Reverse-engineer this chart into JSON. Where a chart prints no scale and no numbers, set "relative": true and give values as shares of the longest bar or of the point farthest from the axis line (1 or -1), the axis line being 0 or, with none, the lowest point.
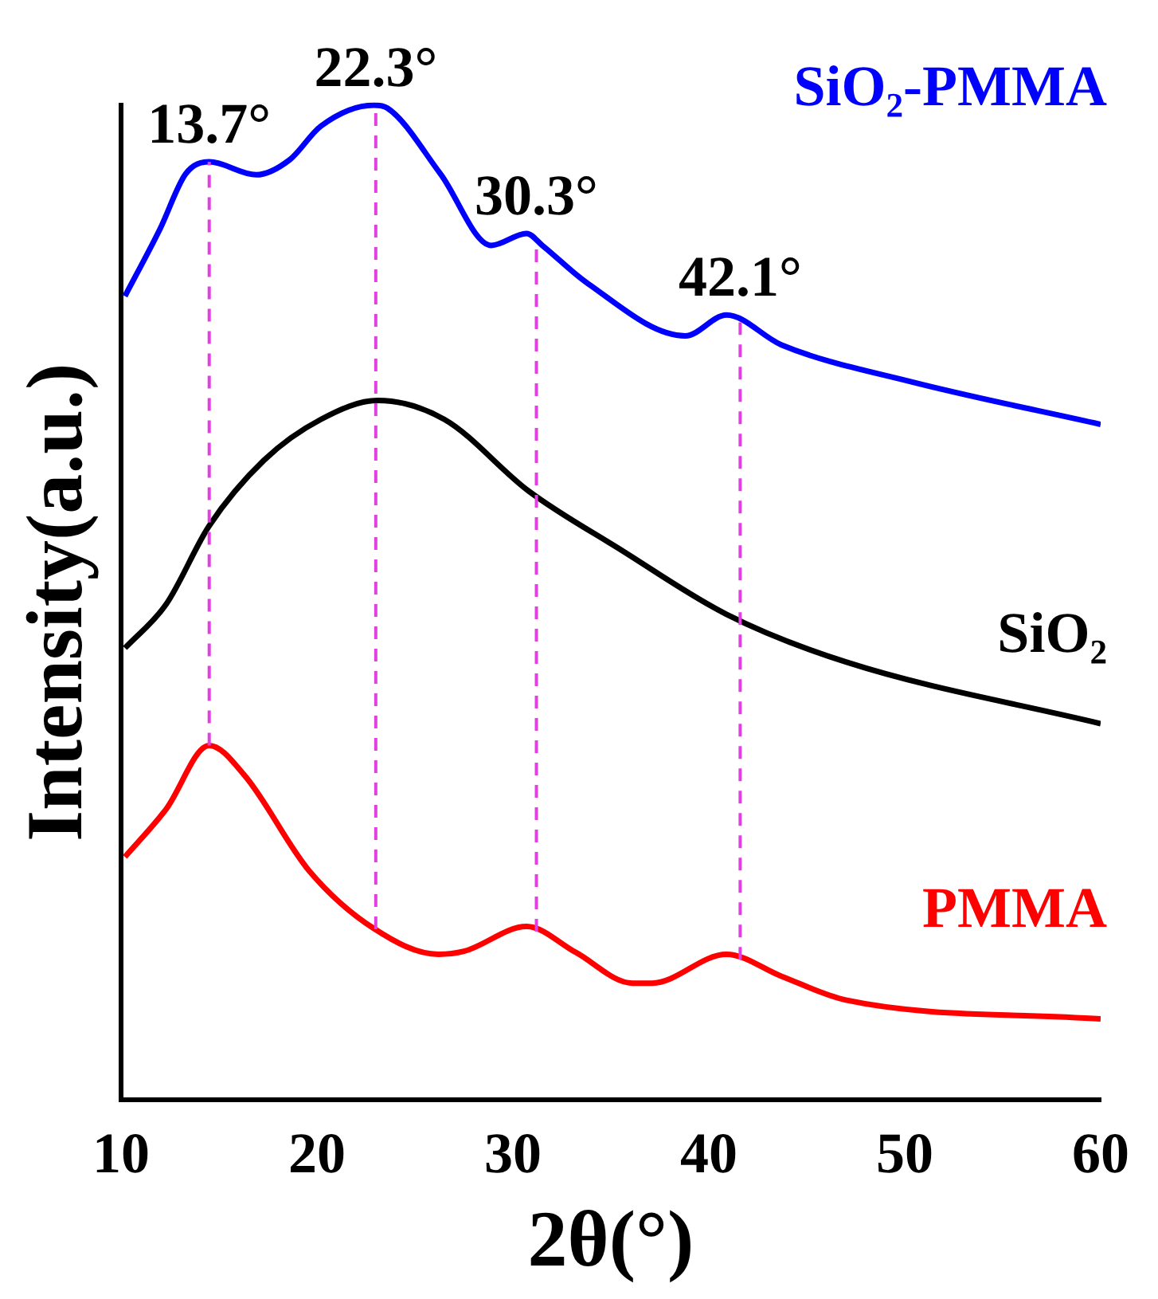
{
  "chart_data": {
    "type": "line",
    "relative": true,
    "xlabel": "2θ(°)",
    "ylabel": "Intensity(a.u.)",
    "xlim": [
      10,
      60
    ],
    "xticks": [
      10,
      20,
      30,
      40,
      50,
      60
    ],
    "grid": false,
    "legend": false,
    "marker": "none",
    "line_style": "solid",
    "series": [
      {
        "name": "SiO₂-PMMA",
        "color": "#0000ff",
        "x": [
          10.2,
          12.0,
          13.3,
          14.5,
          16.9,
          18.6,
          20.2,
          22.9,
          23.6,
          26.3,
          28.9,
          30.7,
          31.5,
          33.8,
          38.8,
          40.9,
          43.7,
          50.3,
          60
        ],
        "values": [
          0.808,
          0.876,
          0.931,
          0.943,
          0.93,
          0.945,
          0.979,
          1.0,
          0.997,
          0.931,
          0.859,
          0.871,
          0.859,
          0.821,
          0.768,
          0.789,
          0.759,
          0.722,
          0.679
        ]
      },
      {
        "name": "SiO₂",
        "color": "#000000",
        "x": [
          10.2,
          12.3,
          14.5,
          17.3,
          20.2,
          23.1,
          26.5,
          30.8,
          35.5,
          40.9,
          47.0,
          60
        ],
        "values": [
          0.454,
          0.498,
          0.577,
          0.643,
          0.684,
          0.703,
          0.684,
          0.612,
          0.553,
          0.488,
          0.44,
          0.378
        ]
      },
      {
        "name": "PMMA",
        "color": "#ff0000",
        "x": [
          10.2,
          12.3,
          14.5,
          16.3,
          19.6,
          22.9,
          26.2,
          27.5,
          30.7,
          33.2,
          36.1,
          37.1,
          40.9,
          43.7,
          47.0,
          60
        ],
        "values": [
          0.244,
          0.292,
          0.356,
          0.326,
          0.23,
          0.172,
          0.146,
          0.149,
          0.174,
          0.148,
          0.117,
          0.117,
          0.146,
          0.124,
          0.1,
          0.081
        ]
      }
    ],
    "ref_lines": [
      {
        "axis": "x",
        "value": 14.5,
        "color": "#e040e0",
        "line_style": "dashed"
      },
      {
        "axis": "x",
        "value": 23.0,
        "color": "#e040e0",
        "line_style": "dashed"
      },
      {
        "axis": "x",
        "value": 31.2,
        "color": "#e040e0",
        "line_style": "dashed"
      },
      {
        "axis": "x",
        "value": 41.6,
        "color": "#e040e0",
        "line_style": "dashed"
      }
    ],
    "annotations": [
      {
        "text": "13.7°",
        "x": 14.5,
        "y": 0.943
      },
      {
        "text": "22.3°",
        "x": 23.0,
        "y": 1.0
      },
      {
        "text": "30.3°",
        "x": 31.2,
        "y": 0.871
      },
      {
        "text": "42.1°",
        "x": 41.6,
        "y": 0.789
      }
    ]
  }
}
